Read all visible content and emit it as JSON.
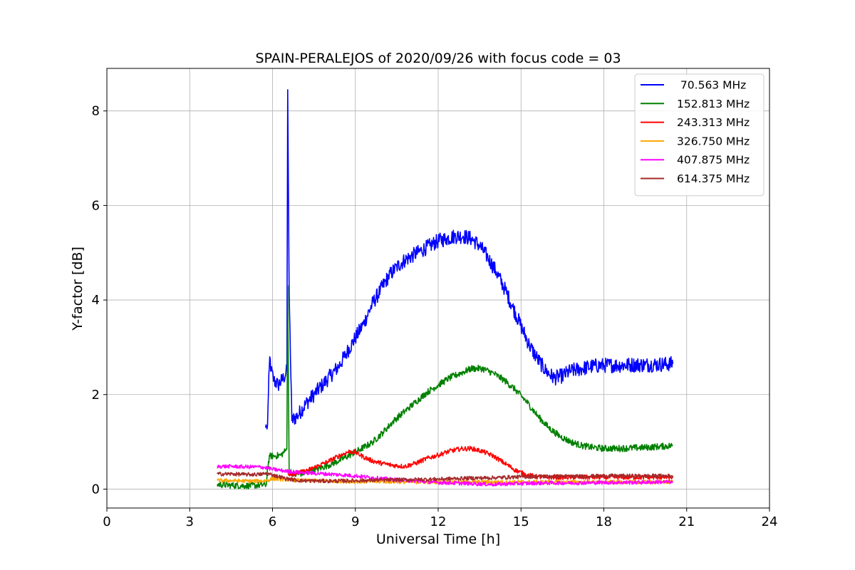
{
  "chart_data": {
    "type": "line",
    "title": "SPAIN-PERALEJOS of 2020/09/26 with focus code = 03",
    "xlabel": "Universal Time [h]",
    "ylabel": "Y-factor [dB]",
    "xlim": [
      0,
      24
    ],
    "ylim": [
      -0.4,
      8.9
    ],
    "xticks": [
      0,
      3,
      6,
      9,
      12,
      15,
      18,
      21,
      24
    ],
    "yticks": [
      0,
      2,
      4,
      6,
      8
    ],
    "grid": true,
    "legend_position": "top-right",
    "series": [
      {
        "name": " 70.563 MHz",
        "color": "#0000ff",
        "noise": 0.16,
        "x": [
          5.75,
          5.78,
          5.82,
          5.85,
          5.9,
          5.95,
          6.05,
          6.2,
          6.4,
          6.52,
          6.55,
          6.6,
          6.7,
          6.9,
          7.2,
          7.5,
          7.8,
          8.1,
          8.4,
          8.7,
          9.0,
          9.3,
          9.6,
          9.9,
          10.2,
          10.5,
          10.8,
          11.1,
          11.4,
          11.7,
          12.0,
          12.3,
          12.6,
          12.9,
          13.2,
          13.5,
          13.8,
          14.1,
          14.4,
          14.7,
          15.0,
          15.3,
          15.6,
          15.9,
          16.2,
          16.5,
          16.8,
          17.2,
          17.6,
          18.0,
          18.5,
          19.0,
          19.5,
          20.0,
          20.5
        ],
        "y": [
          1.3,
          1.32,
          1.35,
          2.0,
          2.8,
          2.5,
          2.3,
          2.2,
          2.35,
          2.5,
          8.45,
          4.2,
          1.45,
          1.55,
          1.8,
          2.0,
          2.2,
          2.4,
          2.6,
          2.9,
          3.2,
          3.5,
          3.9,
          4.2,
          4.5,
          4.7,
          4.85,
          4.95,
          5.05,
          5.15,
          5.25,
          5.3,
          5.35,
          5.35,
          5.3,
          5.15,
          4.9,
          4.6,
          4.25,
          3.85,
          3.45,
          3.05,
          2.75,
          2.5,
          2.35,
          2.4,
          2.5,
          2.55,
          2.6,
          2.62,
          2.62,
          2.63,
          2.63,
          2.64,
          2.65
        ]
      },
      {
        "name": "152.813 MHz",
        "color": "#008000",
        "noise": 0.07,
        "x": [
          4.0,
          4.5,
          5.0,
          5.5,
          5.78,
          5.82,
          5.9,
          6.1,
          6.3,
          6.45,
          6.52,
          6.55,
          6.6,
          6.8,
          7.2,
          7.6,
          8.0,
          8.4,
          8.8,
          9.2,
          9.6,
          10.0,
          10.4,
          10.8,
          11.2,
          11.6,
          12.0,
          12.4,
          12.8,
          13.2,
          13.6,
          14.0,
          14.4,
          14.8,
          15.2,
          15.6,
          16.0,
          16.4,
          16.8,
          17.2,
          17.6,
          18.0,
          18.5,
          19.0,
          19.5,
          20.0,
          20.5
        ],
        "y": [
          0.1,
          0.08,
          0.07,
          0.08,
          0.1,
          0.45,
          0.7,
          0.7,
          0.72,
          0.8,
          0.85,
          4.3,
          0.4,
          0.3,
          0.35,
          0.42,
          0.5,
          0.6,
          0.72,
          0.85,
          0.98,
          1.2,
          1.45,
          1.65,
          1.85,
          2.05,
          2.2,
          2.35,
          2.45,
          2.55,
          2.55,
          2.45,
          2.3,
          2.1,
          1.85,
          1.55,
          1.3,
          1.12,
          1.0,
          0.92,
          0.88,
          0.86,
          0.86,
          0.87,
          0.88,
          0.9,
          0.92
        ]
      },
      {
        "name": "243.313 MHz",
        "color": "#ff0000",
        "noise": 0.05,
        "x": [
          6.55,
          6.8,
          7.2,
          7.6,
          8.0,
          8.4,
          8.8,
          9.0,
          9.3,
          9.6,
          10.0,
          10.4,
          10.8,
          11.2,
          11.6,
          12.0,
          12.4,
          12.8,
          13.2,
          13.6,
          14.0,
          14.4,
          14.8,
          15.2,
          15.6,
          16.0,
          16.5,
          17.0,
          17.5,
          18.0,
          18.5,
          19.0,
          19.5,
          20.0,
          20.5
        ],
        "y": [
          0.32,
          0.33,
          0.38,
          0.48,
          0.58,
          0.7,
          0.8,
          0.78,
          0.68,
          0.6,
          0.54,
          0.5,
          0.48,
          0.55,
          0.65,
          0.72,
          0.8,
          0.85,
          0.86,
          0.8,
          0.7,
          0.55,
          0.4,
          0.3,
          0.26,
          0.25,
          0.25,
          0.25,
          0.25,
          0.25,
          0.25,
          0.25,
          0.25,
          0.25,
          0.25
        ]
      },
      {
        "name": "326.750 MHz",
        "color": "#ffa500",
        "noise": 0.04,
        "x": [
          4.0,
          4.5,
          5.0,
          5.5,
          5.8,
          6.0,
          6.5,
          7.0,
          8.0,
          9.0,
          10.0,
          11.0,
          12.0,
          13.0,
          14.0,
          15.0,
          16.0,
          17.0,
          18.0,
          19.0,
          20.0,
          20.5
        ],
        "y": [
          0.18,
          0.18,
          0.17,
          0.17,
          0.18,
          0.22,
          0.2,
          0.18,
          0.17,
          0.16,
          0.16,
          0.15,
          0.15,
          0.15,
          0.15,
          0.15,
          0.15,
          0.15,
          0.15,
          0.15,
          0.15,
          0.15
        ]
      },
      {
        "name": "407.875 MHz",
        "color": "#ff00ff",
        "noise": 0.04,
        "x": [
          4.0,
          4.5,
          5.0,
          5.5,
          5.8,
          6.0,
          6.5,
          7.0,
          8.0,
          9.0,
          10.0,
          11.0,
          12.0,
          13.0,
          14.0,
          15.0,
          16.0,
          17.0,
          18.0,
          19.0,
          20.0,
          20.5
        ],
        "y": [
          0.48,
          0.48,
          0.47,
          0.47,
          0.45,
          0.42,
          0.38,
          0.35,
          0.32,
          0.28,
          0.22,
          0.18,
          0.14,
          0.12,
          0.1,
          0.12,
          0.13,
          0.13,
          0.14,
          0.14,
          0.15,
          0.15
        ]
      },
      {
        "name": "614.375 MHz",
        "color": "#a52a2a",
        "noise": 0.04,
        "x": [
          4.0,
          4.5,
          5.0,
          5.5,
          5.8,
          6.0,
          6.5,
          7.0,
          8.0,
          9.0,
          10.0,
          11.0,
          12.0,
          13.0,
          14.0,
          15.0,
          16.0,
          17.0,
          18.0,
          19.0,
          20.0,
          20.5
        ],
        "y": [
          0.32,
          0.32,
          0.31,
          0.31,
          0.33,
          0.3,
          0.22,
          0.18,
          0.17,
          0.18,
          0.19,
          0.2,
          0.21,
          0.23,
          0.24,
          0.26,
          0.27,
          0.27,
          0.28,
          0.28,
          0.28,
          0.28
        ]
      }
    ]
  }
}
